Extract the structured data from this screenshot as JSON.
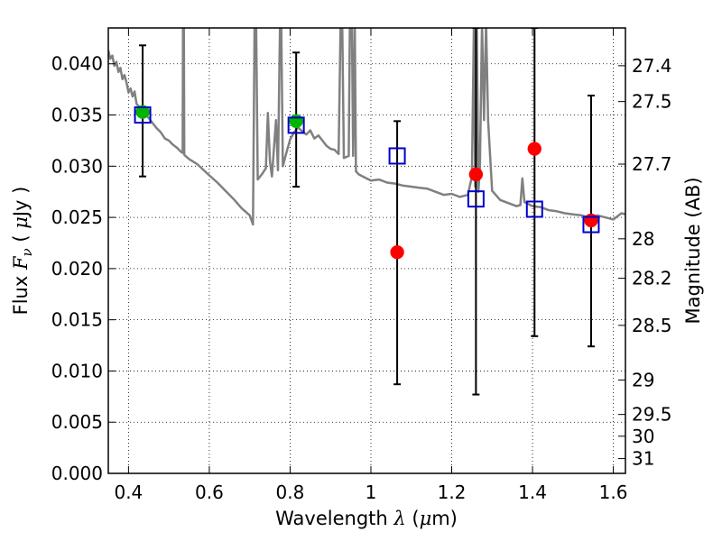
{
  "chart_data": {
    "type": "scatter",
    "xlabel_text": "Wavelength  ",
    "xlabel_symbol": "λ",
    "xlabel_unit_open": " (",
    "xlabel_unit_mu": "μ",
    "xlabel_unit_close": "m)",
    "ylabel_text": "Flux  ",
    "ylabel_symbol": "F",
    "ylabel_sub": "ν",
    "ylabel_unit_open": "  ( ",
    "ylabel_unit_mu": "μ",
    "ylabel_unit_close": "Jy )",
    "y2label": "Magnitude (AB)",
    "xlim": [
      0.35,
      1.63
    ],
    "ylim": [
      0.0,
      0.0435
    ],
    "grid": true,
    "x_ticks": [
      {
        "value": 0.4,
        "label": "0.4"
      },
      {
        "value": 0.6,
        "label": "0.6"
      },
      {
        "value": 0.8,
        "label": "0.8"
      },
      {
        "value": 1.0,
        "label": "1"
      },
      {
        "value": 1.2,
        "label": "1.2"
      },
      {
        "value": 1.4,
        "label": "1.4"
      },
      {
        "value": 1.6,
        "label": "1.6"
      }
    ],
    "y_ticks": [
      {
        "value": 0.0,
        "label": "0.000"
      },
      {
        "value": 0.005,
        "label": "0.005"
      },
      {
        "value": 0.01,
        "label": "0.010"
      },
      {
        "value": 0.015,
        "label": "0.015"
      },
      {
        "value": 0.02,
        "label": "0.020"
      },
      {
        "value": 0.025,
        "label": "0.025"
      },
      {
        "value": 0.03,
        "label": "0.030"
      },
      {
        "value": 0.035,
        "label": "0.035"
      },
      {
        "value": 0.04,
        "label": "0.040"
      }
    ],
    "y2_ticks": [
      {
        "value": 27.4,
        "label": "27.4"
      },
      {
        "value": 27.5,
        "label": "27.5"
      },
      {
        "value": 27.7,
        "label": "27.7"
      },
      {
        "value": 28.0,
        "label": "28"
      },
      {
        "value": 28.2,
        "label": "28.2"
      },
      {
        "value": 28.5,
        "label": "28.5"
      },
      {
        "value": 29.0,
        "label": "29"
      },
      {
        "value": 29.5,
        "label": "29.5"
      },
      {
        "value": 30.0,
        "label": "30"
      },
      {
        "value": 31.0,
        "label": "31"
      }
    ],
    "ab_zero_point_ujy": 3631000000,
    "series": [
      {
        "kind": "spectrum",
        "color": "#808080",
        "points": [
          [
            0.35,
            0.0413
          ],
          [
            0.355,
            0.0405
          ],
          [
            0.36,
            0.0408
          ],
          [
            0.365,
            0.0398
          ],
          [
            0.37,
            0.0402
          ],
          [
            0.375,
            0.0392
          ],
          [
            0.38,
            0.0396
          ],
          [
            0.385,
            0.0385
          ],
          [
            0.39,
            0.0389
          ],
          [
            0.395,
            0.0382
          ],
          [
            0.4,
            0.0372
          ],
          [
            0.405,
            0.0376
          ],
          [
            0.41,
            0.0368
          ],
          [
            0.415,
            0.0373
          ],
          [
            0.42,
            0.0361
          ],
          [
            0.43,
            0.0356
          ],
          [
            0.44,
            0.0352
          ],
          [
            0.45,
            0.0347
          ],
          [
            0.46,
            0.0342
          ],
          [
            0.47,
            0.0337
          ],
          [
            0.48,
            0.0333
          ],
          [
            0.49,
            0.0327
          ],
          [
            0.5,
            0.0325
          ],
          [
            0.51,
            0.0321
          ],
          [
            0.52,
            0.0318
          ],
          [
            0.53,
            0.0314
          ],
          [
            0.534,
            0.0313
          ],
          [
            0.535,
            0.044
          ],
          [
            0.537,
            0.044
          ],
          [
            0.538,
            0.0311
          ],
          [
            0.55,
            0.0307
          ],
          [
            0.57,
            0.0302
          ],
          [
            0.6,
            0.0291
          ],
          [
            0.62,
            0.0284
          ],
          [
            0.64,
            0.0276
          ],
          [
            0.66,
            0.0268
          ],
          [
            0.68,
            0.0259
          ],
          [
            0.7,
            0.0252
          ],
          [
            0.708,
            0.0243
          ],
          [
            0.712,
            0.044
          ],
          [
            0.716,
            0.044
          ],
          [
            0.72,
            0.0287
          ],
          [
            0.73,
            0.0292
          ],
          [
            0.74,
            0.0298
          ],
          [
            0.745,
            0.0352
          ],
          [
            0.75,
            0.0305
          ],
          [
            0.755,
            0.029
          ],
          [
            0.765,
            0.0345
          ],
          [
            0.77,
            0.0296
          ],
          [
            0.775,
            0.044
          ],
          [
            0.778,
            0.044
          ],
          [
            0.782,
            0.03
          ],
          [
            0.79,
            0.0312
          ],
          [
            0.8,
            0.0326
          ],
          [
            0.81,
            0.0333
          ],
          [
            0.82,
            0.0338
          ],
          [
            0.83,
            0.0334
          ],
          [
            0.84,
            0.0331
          ],
          [
            0.85,
            0.0335
          ],
          [
            0.86,
            0.0327
          ],
          [
            0.87,
            0.033
          ],
          [
            0.88,
            0.0325
          ],
          [
            0.89,
            0.032
          ],
          [
            0.9,
            0.0317
          ],
          [
            0.91,
            0.0316
          ],
          [
            0.92,
            0.0312
          ],
          [
            0.925,
            0.044
          ],
          [
            0.929,
            0.044
          ],
          [
            0.933,
            0.0308
          ],
          [
            0.945,
            0.031
          ],
          [
            0.948,
            0.044
          ],
          [
            0.953,
            0.044
          ],
          [
            0.956,
            0.031
          ],
          [
            0.96,
            0.044
          ],
          [
            0.963,
            0.0295
          ],
          [
            0.97,
            0.0292
          ],
          [
            0.98,
            0.029
          ],
          [
            1.0,
            0.0286
          ],
          [
            1.02,
            0.0287
          ],
          [
            1.04,
            0.0284
          ],
          [
            1.06,
            0.0283
          ],
          [
            1.08,
            0.0281
          ],
          [
            1.1,
            0.028
          ],
          [
            1.12,
            0.0279
          ],
          [
            1.14,
            0.0278
          ],
          [
            1.16,
            0.0275
          ],
          [
            1.18,
            0.0272
          ],
          [
            1.2,
            0.0273
          ],
          [
            1.22,
            0.027
          ],
          [
            1.24,
            0.0272
          ],
          [
            1.25,
            0.029
          ],
          [
            1.255,
            0.044
          ],
          [
            1.258,
            0.028
          ],
          [
            1.262,
            0.044
          ],
          [
            1.266,
            0.0275
          ],
          [
            1.27,
            0.03
          ],
          [
            1.275,
            0.044
          ],
          [
            1.28,
            0.0345
          ],
          [
            1.285,
            0.044
          ],
          [
            1.29,
            0.0345
          ],
          [
            1.3,
            0.0276
          ],
          [
            1.32,
            0.0267
          ],
          [
            1.34,
            0.0264
          ],
          [
            1.36,
            0.0261
          ],
          [
            1.37,
            0.0262
          ],
          [
            1.375,
            0.0288
          ],
          [
            1.38,
            0.0265
          ],
          [
            1.4,
            0.0261
          ],
          [
            1.42,
            0.026
          ],
          [
            1.44,
            0.0257
          ],
          [
            1.46,
            0.0256
          ],
          [
            1.48,
            0.0254
          ],
          [
            1.5,
            0.0253
          ],
          [
            1.52,
            0.0252
          ],
          [
            1.54,
            0.025
          ],
          [
            1.56,
            0.0252
          ],
          [
            1.58,
            0.025
          ],
          [
            1.6,
            0.0248
          ],
          [
            1.61,
            0.0251
          ],
          [
            1.62,
            0.0254
          ],
          [
            1.63,
            0.0253
          ]
        ]
      },
      {
        "kind": "squares",
        "color": "#0000cc",
        "points": [
          {
            "x": 0.435,
            "y": 0.035,
            "yerr_low": 0.029,
            "yerr_high": 0.0418
          },
          {
            "x": 0.815,
            "y": 0.034,
            "yerr_low": 0.028,
            "yerr_high": 0.0411
          },
          {
            "x": 1.065,
            "y": 0.031,
            "yerr_low": 0.0087,
            "yerr_high": 0.0344
          },
          {
            "x": 1.26,
            "y": 0.0268,
            "yerr_low": 0.0077,
            "yerr_high": 0.0435
          },
          {
            "x": 1.405,
            "y": 0.0258,
            "yerr_low": 0.0134,
            "yerr_high": 0.0435
          },
          {
            "x": 1.545,
            "y": 0.0243,
            "yerr_low": 0.0124,
            "yerr_high": 0.0369
          }
        ]
      },
      {
        "kind": "green",
        "color": "#00b400",
        "points": [
          {
            "x": 0.435,
            "y": 0.0353
          },
          {
            "x": 0.815,
            "y": 0.0344
          }
        ]
      },
      {
        "kind": "red",
        "color": "#ff0000",
        "points": [
          {
            "x": 1.065,
            "y": 0.0216
          },
          {
            "x": 1.26,
            "y": 0.0292
          },
          {
            "x": 1.405,
            "y": 0.0317
          },
          {
            "x": 1.545,
            "y": 0.0247
          }
        ]
      }
    ]
  }
}
